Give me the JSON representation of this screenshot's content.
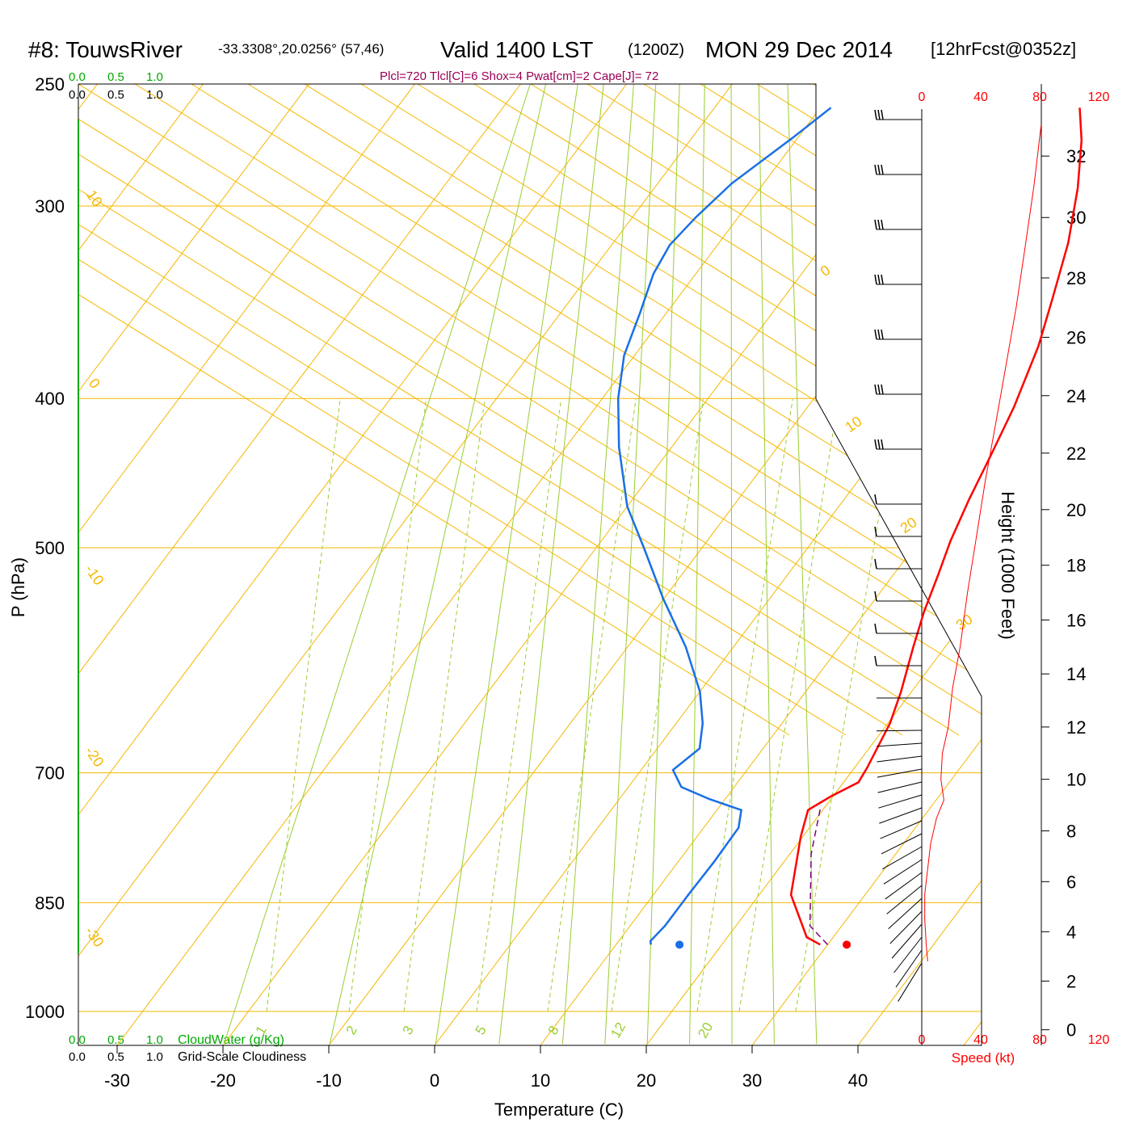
{
  "header": {
    "station": "#8: TouwsRiver",
    "coords": "-33.3308°,20.0256° (57,46)",
    "valid": "Valid 1400 LST",
    "zulu": "(1200Z)",
    "date": "MON 29 Dec 2014",
    "forecast": "[12hrFcst@0352z]",
    "indices": "Plcl=720 Tlcl[C]=6 Shox=4 Pwat[cm]=2 Cape[J]= 72"
  },
  "colors": {
    "temperature": "#ff0000",
    "dewpoint": "#1a6fe6",
    "parcel": "#800080",
    "isotherm": "#f5b800",
    "mixing_ratio": "#9acd32",
    "cloudwater": "#00aa00",
    "speed": "#ff0000",
    "indices": "#990055"
  },
  "chart_data": {
    "type": "line",
    "title": "#8: TouwsRiver Valid 1400 LST (1200Z) MON 29 Dec 2014",
    "xlabel": "Temperature (C)",
    "ylabel": "P (hPa)",
    "y2label": "Height (1000 Feet)",
    "xlim": [
      -35,
      45
    ],
    "ylim": [
      1050,
      250
    ],
    "log_y": true,
    "x_ticks": [
      "-30",
      "-20",
      "-10",
      "0",
      "10",
      "20",
      "30",
      "40"
    ],
    "y_ticks": [
      "250",
      "300",
      "400",
      "500",
      "700",
      "850",
      "1000"
    ],
    "height_ticks": [
      "0",
      "2",
      "4",
      "6",
      "8",
      "10",
      "12",
      "14",
      "16",
      "18",
      "20",
      "22",
      "24",
      "26",
      "28",
      "30",
      "32"
    ],
    "isotherm_labels": [
      "10",
      "0",
      "-10",
      "-20",
      "-30",
      "0",
      "10",
      "20",
      "30"
    ],
    "mixing_ratio_labels": [
      "1",
      "2",
      "3",
      "5",
      "8",
      "12",
      "20"
    ],
    "cloud_scale_labels": [
      "0.0",
      "0.5",
      "1.0"
    ],
    "cloudwater_label": "CloudWater (g/Kg)",
    "cloudiness_label": "Grid-Scale Cloudiness",
    "speed_axis_labels": [
      "0",
      "40",
      "80",
      "120"
    ],
    "speed_label": "Speed (kt)",
    "series": [
      {
        "name": "Temperature",
        "color": "#ff0000",
        "points": [
          [
            29.3,
            905
          ],
          [
            27.5,
            895
          ],
          [
            23.0,
            840
          ],
          [
            19.8,
            770
          ],
          [
            18.6,
            740
          ],
          [
            19.8,
            725
          ],
          [
            21.4,
            710
          ],
          [
            21.2,
            695
          ],
          [
            20.2,
            650
          ],
          [
            19.0,
            620
          ],
          [
            17.0,
            580
          ],
          [
            15.5,
            550
          ],
          [
            14.2,
            520
          ],
          [
            13.0,
            495
          ],
          [
            11.8,
            465
          ],
          [
            10.8,
            437
          ],
          [
            9.5,
            405
          ],
          [
            7.5,
            370
          ],
          [
            5.5,
            345
          ],
          [
            3.0,
            317
          ],
          [
            0.0,
            292
          ],
          [
            -3.0,
            272
          ],
          [
            -5.5,
            259
          ]
        ]
      },
      {
        "name": "Dewpoint",
        "color": "#1a6fe6",
        "points": [
          [
            13.3,
            905
          ],
          [
            13.0,
            900
          ],
          [
            13.3,
            880
          ],
          [
            13.3,
            840
          ],
          [
            13.4,
            800
          ],
          [
            13.3,
            760
          ],
          [
            12.3,
            740
          ],
          [
            8.5,
            728
          ],
          [
            5.0,
            715
          ],
          [
            3.0,
            697
          ],
          [
            4.0,
            675
          ],
          [
            2.5,
            650
          ],
          [
            0.0,
            620
          ],
          [
            -4.5,
            580
          ],
          [
            -10.0,
            540
          ],
          [
            -15.5,
            500
          ],
          [
            -20.0,
            470
          ],
          [
            -25.0,
            430
          ],
          [
            -28.5,
            400
          ],
          [
            -31.0,
            375
          ],
          [
            -32.5,
            352
          ],
          [
            -34.0,
            332
          ],
          [
            -34.5,
            318
          ],
          [
            -34.0,
            305
          ],
          [
            -33.0,
            290
          ],
          [
            -30.5,
            271
          ],
          [
            -29.0,
            259
          ]
        ]
      },
      {
        "name": "Parcel",
        "color": "#800080",
        "dashed": true,
        "points": [
          [
            30.0,
            905
          ],
          [
            27.0,
            880
          ],
          [
            22.0,
            790
          ],
          [
            19.5,
            735
          ]
        ]
      }
    ],
    "surface_points": [
      {
        "name": "surface temperature",
        "t": 31.8,
        "p": 905,
        "color": "#ff0000"
      },
      {
        "name": "surface dewpoint",
        "t": 16.0,
        "p": 905,
        "color": "#1a6fe6"
      }
    ],
    "wind_speed_profile": {
      "height_kft": [
        2.8,
        3.5,
        4.5,
        5.5,
        6.5,
        7.5,
        8.5,
        9.2,
        10.0,
        11.0,
        12.0,
        13.5,
        15.0,
        17.0,
        19.0,
        21.0,
        23.0,
        25.0,
        27.0,
        29.0,
        31.0,
        33.0
      ],
      "speed_kt": [
        4,
        3,
        2,
        2,
        4,
        6,
        10,
        15,
        13,
        14,
        18,
        21,
        26,
        31,
        37,
        43,
        50,
        57,
        64,
        70,
        76,
        81
      ]
    }
  }
}
